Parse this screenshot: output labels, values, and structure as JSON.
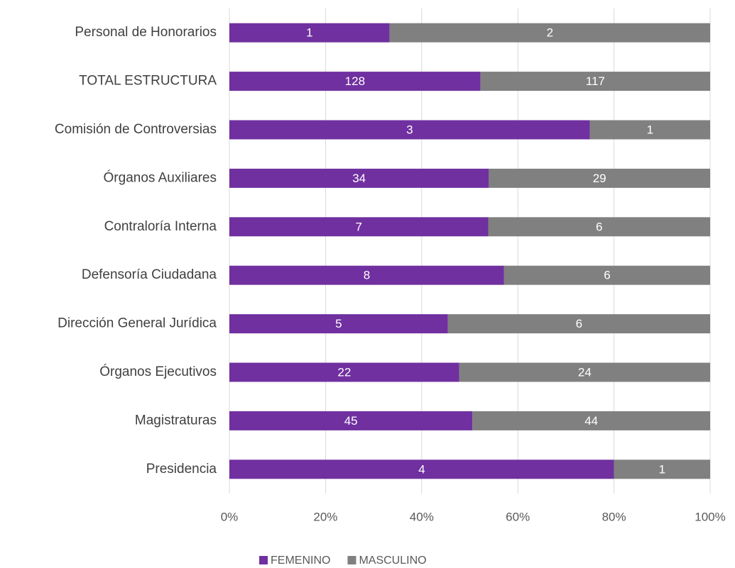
{
  "chart_data": {
    "type": "bar",
    "orientation": "horizontal",
    "stacking": "percent",
    "categories": [
      "Personal de Honorarios",
      "TOTAL ESTRUCTURA",
      "Comisión de Controversias",
      "Órganos Auxiliares",
      "Contraloría Interna",
      "Defensoría Ciudadana",
      "Dirección General Jurídica",
      "Órganos Ejecutivos",
      "Magistraturas",
      "Presidencia"
    ],
    "series": [
      {
        "name": "FEMENINO",
        "color": "#7030a0",
        "values": [
          1,
          128,
          3,
          34,
          7,
          8,
          5,
          22,
          45,
          4
        ]
      },
      {
        "name": "MASCULINO",
        "color": "#808080",
        "values": [
          2,
          117,
          1,
          29,
          6,
          6,
          6,
          24,
          44,
          1
        ]
      }
    ],
    "xlim": [
      0,
      100
    ],
    "xticks": [
      {
        "value": 0,
        "label": "0%"
      },
      {
        "value": 20,
        "label": "20%"
      },
      {
        "value": 40,
        "label": "40%"
      },
      {
        "value": 60,
        "label": "60%"
      },
      {
        "value": 80,
        "label": "80%"
      },
      {
        "value": 100,
        "label": "100%"
      }
    ],
    "grid": true,
    "legend": "bottom"
  }
}
